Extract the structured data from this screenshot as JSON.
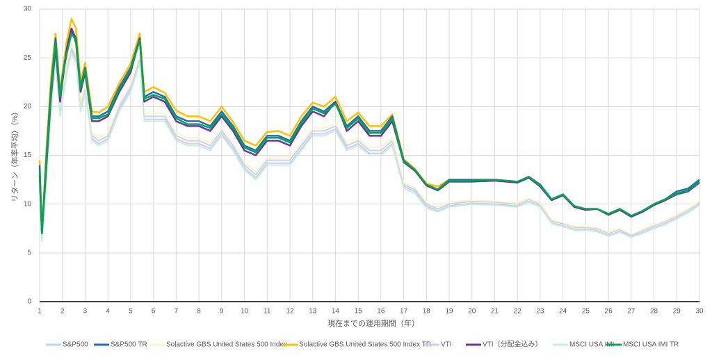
{
  "chart_data": {
    "type": "line",
    "x_label": "現在までの運用期間（年）",
    "y_label": "リターン（年率平均）（%）",
    "xlim": [
      1,
      30
    ],
    "ylim": [
      0,
      30
    ],
    "xticks": [
      1,
      2,
      3,
      4,
      5,
      6,
      7,
      8,
      9,
      10,
      11,
      12,
      13,
      14,
      15,
      16,
      17,
      18,
      19,
      20,
      21,
      22,
      23,
      24,
      25,
      26,
      27,
      28,
      29,
      30
    ],
    "yticks": [
      0,
      5,
      10,
      15,
      20,
      25,
      30
    ],
    "grid": true,
    "legend": "bottom",
    "x": [
      1,
      1.1,
      1.3,
      1.5,
      1.7,
      1.9,
      2,
      2.2,
      2.4,
      2.6,
      2.8,
      3,
      3.3,
      3.6,
      4,
      4.5,
      5,
      5.4,
      5.6,
      6,
      6.5,
      7,
      7.5,
      8,
      8.5,
      9,
      9.5,
      10,
      10.5,
      11,
      11.5,
      12,
      12.5,
      13,
      13.5,
      14,
      14.5,
      15,
      15.5,
      16,
      16.5,
      17,
      17.5,
      18,
      18.5,
      19,
      20,
      21,
      22,
      22.5,
      23,
      23.5,
      24,
      24.5,
      25,
      25.5,
      26,
      26.5,
      27,
      27.5,
      28,
      28.5,
      29,
      29.5,
      30
    ],
    "series": [
      {
        "name": "S&P500",
        "color": "#bdd7ee",
        "width": 2,
        "values": [
          12,
          6.5,
          13,
          20,
          25,
          19.5,
          21,
          24,
          26,
          25,
          20,
          22,
          17,
          16.5,
          17,
          20,
          22,
          25,
          19,
          19,
          19,
          17,
          16.5,
          16.5,
          16,
          17.5,
          16,
          14,
          13,
          14.5,
          14.5,
          14.5,
          16,
          17.5,
          17.5,
          18,
          16,
          16.5,
          15.5,
          15.5,
          16.5,
          12,
          11.5,
          10,
          9.5,
          10,
          10.3,
          10.2,
          10,
          10.5,
          10,
          8.3,
          8,
          7.6,
          7.6,
          7.5,
          7,
          7.4,
          6.8,
          7.3,
          7.8,
          8.2,
          8.8,
          9.4,
          10.2
        ]
      },
      {
        "name": "S&P500 TR",
        "color": "#1f6fb5",
        "width": 2.5,
        "values": [
          14,
          7,
          15,
          22,
          27,
          21,
          23,
          26,
          28,
          27,
          22,
          24,
          19,
          19,
          19.5,
          22,
          24,
          27,
          21,
          21.5,
          21,
          19,
          18.5,
          18.5,
          18,
          19.5,
          18,
          16,
          15.5,
          17,
          17,
          16.5,
          18.5,
          20,
          19.5,
          20.5,
          18,
          19,
          17.5,
          17.5,
          19,
          14.5,
          13.5,
          12,
          11.5,
          12.5,
          12.5,
          12.5,
          12.3,
          12.8,
          12,
          10.5,
          11,
          9.8,
          9.5,
          9.5,
          9,
          9.5,
          8.8,
          9.3,
          10,
          10.5,
          11.3,
          11.6,
          12.5
        ]
      },
      {
        "name": "Solactive GBS United States 500 Index",
        "color": "#fff2cc",
        "width": 2,
        "values": [
          12.3,
          6.7,
          13.3,
          20.3,
          25.3,
          19.8,
          21.3,
          24.3,
          26.5,
          25.4,
          20.3,
          22.3,
          17.3,
          16.8,
          17.3,
          20.3,
          22.3,
          25.3,
          19.3,
          19.3,
          19.3,
          17.3,
          16.8,
          16.8,
          16.3,
          17.8,
          16.3,
          14.3,
          13.3,
          14.8,
          14.8,
          14.8,
          16.3,
          17.8,
          17.8,
          18.3,
          16.3,
          16.8,
          15.8,
          15.8,
          16.8,
          12.2,
          11.7,
          10.2,
          9.7,
          10.2,
          10.4,
          10.3,
          10.1,
          10.6,
          10.1,
          8.4,
          8.1,
          7.7,
          7.7,
          7.6,
          7.1,
          7.5,
          6.9,
          7.4,
          7.9,
          8.3,
          8.9,
          9.5,
          10.3
        ]
      },
      {
        "name": "Solactive GBS United States 500 Index TR",
        "color": "#ffc000",
        "width": 2.5,
        "values": [
          14.5,
          7.2,
          15.8,
          23,
          27.5,
          21.5,
          23.5,
          26.8,
          29,
          28,
          22.6,
          24.5,
          19.5,
          19.4,
          20,
          22.4,
          24.4,
          27.5,
          21.5,
          22,
          21.4,
          19.6,
          19,
          19,
          18.5,
          20,
          18.4,
          16.5,
          16,
          17.4,
          17.5,
          17,
          19,
          20.4,
          20,
          21,
          18.5,
          19.4,
          18,
          18,
          19.2,
          14.6,
          13.6,
          12.1,
          11.8,
          12.5,
          12.5,
          12.4,
          12.3,
          12.8,
          12,
          10.4,
          11,
          9.7,
          9.5,
          9.5,
          9,
          9.5,
          8.8,
          9.3,
          10,
          10.5,
          11,
          11.4,
          12.3
        ]
      },
      {
        "name": "VTI",
        "color": "#d9c6ee",
        "width": 2,
        "values": [
          11.7,
          6.3,
          12.7,
          19.7,
          24.7,
          19.2,
          20.7,
          23.7,
          25.7,
          24.7,
          19.7,
          21.7,
          16.7,
          16.2,
          16.7,
          19.7,
          21.7,
          24.7,
          18.7,
          18.7,
          18.7,
          16.7,
          16.2,
          16.2,
          15.7,
          17.2,
          15.7,
          13.7,
          12.7,
          14.2,
          14.2,
          14.2,
          15.7,
          17.2,
          17.2,
          17.7,
          15.7,
          16.2,
          15.2,
          15.2,
          16.2,
          11.8,
          11.3,
          9.8,
          9.3,
          9.8,
          10.1,
          10,
          9.8,
          10.3,
          9.8,
          8.1,
          7.8,
          7.4,
          7.4,
          7.3,
          6.8,
          7.2,
          6.7,
          7.1,
          7.6,
          8,
          8.6,
          9.2,
          10
        ]
      },
      {
        "name": "VTI（分配金込み）",
        "color": "#7030a0",
        "width": 2.5,
        "values": [
          13,
          7,
          14,
          21,
          26,
          20.5,
          22.5,
          26,
          28,
          26.5,
          21.5,
          23.5,
          18.5,
          18.5,
          19,
          21.5,
          23.5,
          27,
          20.5,
          21,
          20.5,
          18.5,
          18,
          18,
          17.5,
          19,
          17.5,
          15.5,
          15,
          16.5,
          16.5,
          16,
          18,
          19.5,
          19,
          20.5,
          17.5,
          18.5,
          17,
          17,
          18.5,
          14.3,
          13.4,
          11.9,
          11.4,
          12.3,
          12.3,
          12.4,
          12.2,
          12.7,
          11.8,
          10.4,
          10.9,
          9.7,
          9.4,
          9.5,
          8.9,
          9.4,
          8.7,
          9.2,
          9.9,
          10.4,
          11,
          11.3,
          12.2
        ]
      },
      {
        "name": "MSCI USA IMI",
        "color": "#c6efdb",
        "width": 2,
        "values": [
          11.5,
          6.2,
          12.5,
          19.5,
          24.5,
          19,
          20.5,
          23.5,
          25.5,
          24.5,
          19.5,
          21.5,
          16.5,
          16,
          16.5,
          19.5,
          21.5,
          24.5,
          18.5,
          18.5,
          18.5,
          16.5,
          16,
          16,
          15.5,
          17,
          15.5,
          13.5,
          12.5,
          14,
          14,
          14,
          15.5,
          17,
          17,
          17.5,
          15.5,
          16,
          15,
          15,
          16,
          11.6,
          11.1,
          9.6,
          9.2,
          9.7,
          10,
          9.9,
          9.7,
          10.2,
          9.7,
          8,
          7.7,
          7.3,
          7.3,
          7.2,
          6.7,
          7.1,
          6.6,
          7,
          7.5,
          7.9,
          8.5,
          9.1,
          9.9
        ]
      },
      {
        "name": "MSCI USA IMI TR",
        "color": "#00a651",
        "width": 2.5,
        "values": [
          13.5,
          7,
          14.5,
          21.5,
          26.5,
          21,
          23,
          25.5,
          27.5,
          26.8,
          21.8,
          23.8,
          18.8,
          18.8,
          19.2,
          21.8,
          23.8,
          26.8,
          20.8,
          21.2,
          20.8,
          18.8,
          18.2,
          18.2,
          17.8,
          19.2,
          17.8,
          15.8,
          15.3,
          16.8,
          16.8,
          16.3,
          18.3,
          19.8,
          19.3,
          20.3,
          17.8,
          18.8,
          17.3,
          17.3,
          18.8,
          14.4,
          13.5,
          12,
          11.5,
          12.4,
          12.4,
          12.5,
          12.3,
          12.8,
          11.9,
          10.5,
          11,
          9.8,
          9.5,
          9.5,
          9,
          9.5,
          8.8,
          9.3,
          10,
          10.5,
          11.1,
          11.4,
          12.3
        ]
      }
    ]
  }
}
